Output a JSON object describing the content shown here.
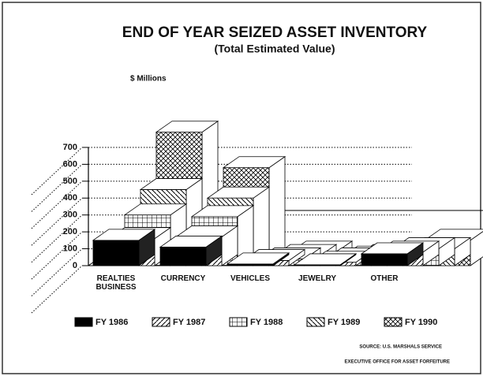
{
  "chart_data": {
    "type": "bar3d",
    "title": "END OF YEAR SEIZED ASSET INVENTORY",
    "subtitle": "(Total Estimated Value)",
    "y_label": "$ Millions",
    "categories": [
      "REALTIES BUSINESS",
      "CURRENCY",
      "VEHICLES",
      "JEWELRY",
      "OTHER"
    ],
    "series": [
      {
        "name": "FY 1986",
        "hatch": "solid",
        "values": [
          150,
          110,
          10,
          5,
          70
        ]
      },
      {
        "name": "FY 1987",
        "hatch": "diagonal",
        "values": [
          160,
          170,
          30,
          20,
          80
        ]
      },
      {
        "name": "FY 1988",
        "hatch": "grid",
        "values": [
          300,
          290,
          40,
          40,
          100
        ]
      },
      {
        "name": "FY 1989",
        "hatch": "back-diagonal",
        "values": [
          450,
          400,
          60,
          50,
          100
        ]
      },
      {
        "name": "FY 1990",
        "hatch": "cross",
        "values": [
          790,
          580,
          80,
          60,
          150
        ]
      }
    ],
    "ylim": [
      0,
      700
    ],
    "yticks": [
      0,
      100,
      200,
      300,
      400,
      500,
      600,
      700
    ],
    "grid": true,
    "source": [
      "SOURCE: U.S. MARSHALS SERVICE",
      "EXECUTIVE OFFICE FOR ASSET FORFEITURE"
    ]
  }
}
